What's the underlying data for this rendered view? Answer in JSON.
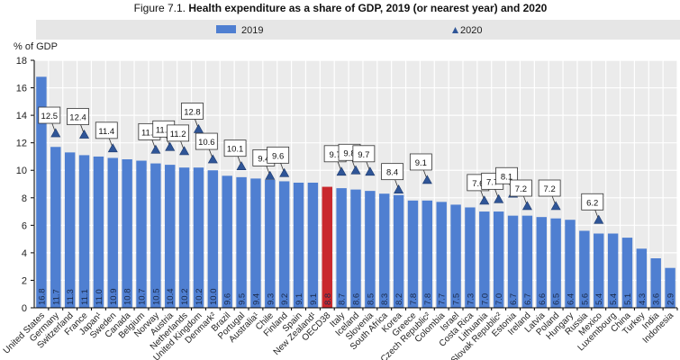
{
  "chart_data": {
    "type": "bar",
    "title_prefix": "Figure 7.1.",
    "title": "Health expenditure as a share of GDP, 2019 (or nearest year) and 2020",
    "ylabel": "% of GDP",
    "ylim": [
      0,
      18
    ],
    "yticks": [
      0,
      2,
      4,
      6,
      8,
      10,
      12,
      14,
      16,
      18
    ],
    "grid": true,
    "legend_position": "top",
    "colors": {
      "bar": "#4f7fd1",
      "highlight": "#c9282d",
      "marker": "#2f5597",
      "background": "#ebebeb"
    },
    "highlight_category": "OECD38",
    "categories": [
      "United States",
      "Germany",
      "Switzerland",
      "France",
      "Japan¹",
      "Sweden",
      "Canada",
      "Belgium",
      "Norway",
      "Austria",
      "Netherlands",
      "United Kingdom",
      "Denmark²",
      "Brazil",
      "Portugal",
      "Australia¹",
      "Chile",
      "Finland",
      "Spain",
      "New Zealand¹",
      "OECD38",
      "Italy",
      "Iceland",
      "Slovenia",
      "South Africa",
      "Korea",
      "Greece",
      "Czech Republic²",
      "Colombia",
      "Israel",
      "Costa Rica",
      "Lithuania",
      "Slovak Republic²",
      "Estonia",
      "Ireland",
      "Latvia",
      "Poland",
      "Hungary",
      "Russia",
      "Mexico",
      "Luxembourg",
      "China",
      "Turkey",
      "India",
      "Indonesia"
    ],
    "series": [
      {
        "name": "2019",
        "type": "bar",
        "values": [
          16.8,
          11.7,
          11.3,
          11.1,
          11.0,
          10.9,
          10.8,
          10.7,
          10.5,
          10.4,
          10.2,
          10.2,
          10.0,
          9.6,
          9.5,
          9.4,
          9.3,
          9.2,
          9.1,
          9.1,
          8.8,
          8.7,
          8.6,
          8.5,
          8.3,
          8.2,
          7.8,
          7.8,
          7.7,
          7.5,
          7.3,
          7.0,
          7.0,
          6.7,
          6.7,
          6.6,
          6.5,
          6.4,
          5.6,
          5.4,
          5.4,
          5.1,
          4.3,
          3.6,
          2.9
        ]
      },
      {
        "name": "2020",
        "type": "marker",
        "values": [
          null,
          12.5,
          null,
          12.4,
          null,
          11.4,
          null,
          null,
          11.3,
          11.5,
          11.2,
          12.8,
          10.6,
          null,
          10.1,
          null,
          9.4,
          9.6,
          null,
          null,
          null,
          9.7,
          9.8,
          9.7,
          null,
          8.4,
          null,
          9.1,
          null,
          null,
          null,
          7.6,
          7.7,
          8.1,
          7.2,
          null,
          7.2,
          null,
          null,
          6.2,
          null,
          null,
          null,
          null,
          null
        ]
      }
    ]
  }
}
